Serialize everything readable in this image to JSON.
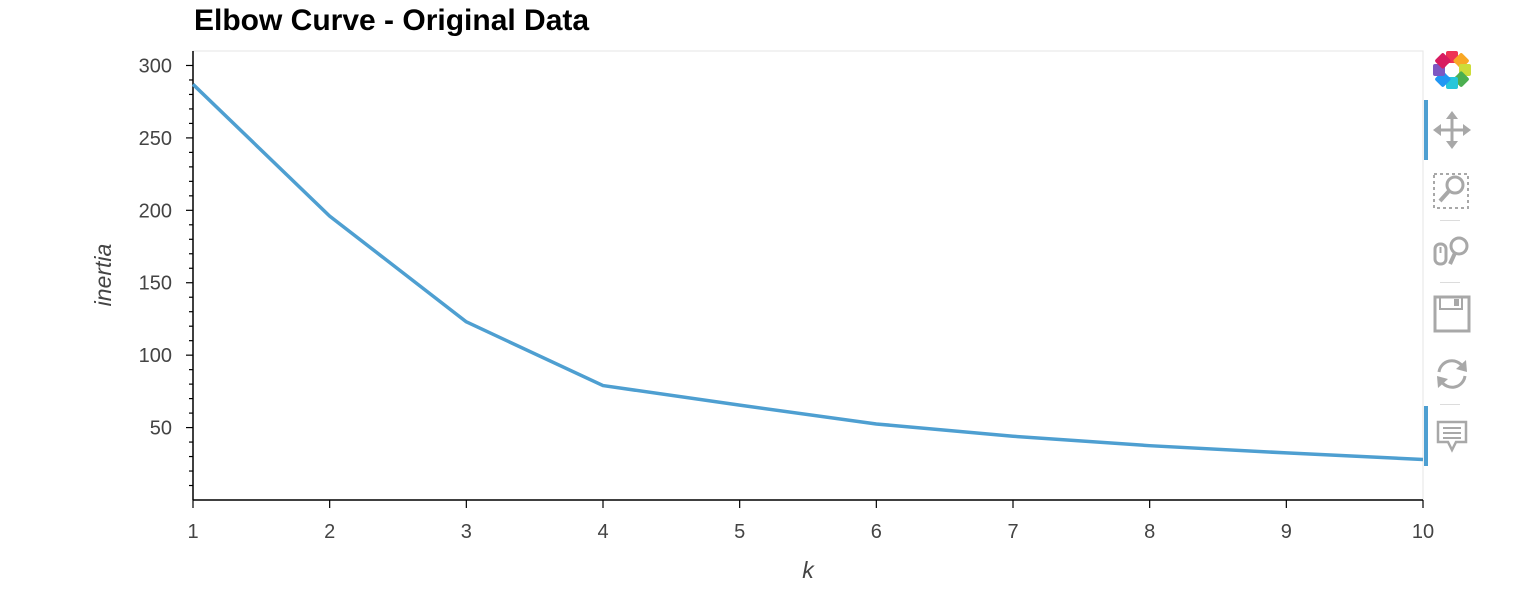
{
  "chart_data": {
    "type": "line",
    "title": "Elbow Curve - Original Data",
    "xlabel": "k",
    "ylabel": "inertia",
    "x": [
      1,
      2,
      3,
      4,
      5,
      6,
      7,
      8,
      9,
      10
    ],
    "series": [
      {
        "values": [
          287,
          196,
          123,
          79,
          65.5,
          52.5,
          44,
          37.5,
          32.5,
          28
        ],
        "color": "#4e9fd1"
      }
    ],
    "xlim": [
      1,
      10
    ],
    "ylim": [
      0,
      310
    ],
    "xticks": [
      1,
      2,
      3,
      4,
      5,
      6,
      7,
      8,
      9,
      10
    ],
    "yticks": [
      50,
      100,
      150,
      200,
      250,
      300
    ],
    "grid": false,
    "legend": "none"
  },
  "toolbar": {
    "tools": [
      {
        "name": "bokeh-logo-icon",
        "active": false
      },
      {
        "name": "pan-icon",
        "active": true
      },
      {
        "name": "box-zoom-icon",
        "active": false
      },
      {
        "name": "wheel-zoom-icon",
        "active": false
      },
      {
        "name": "save-icon",
        "active": false
      },
      {
        "name": "reset-icon",
        "active": false
      },
      {
        "name": "hover-icon",
        "active": true
      }
    ]
  }
}
